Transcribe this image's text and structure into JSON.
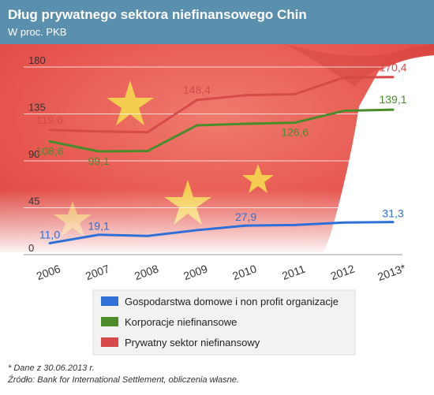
{
  "header": {
    "title": "Dług prywatnego sektora niefinansowego Chin",
    "subtitle": "W proc. PKB"
  },
  "colors": {
    "header_bg": "#5b8fae",
    "flag_red": "#e8504a",
    "flag_star": "#f6df4e",
    "blue_series": "#2f6fd8",
    "green_series": "#4a8c2a",
    "red_series": "#d64a4a",
    "legend_bg": "#f2f2f2"
  },
  "chart_data": {
    "type": "line",
    "x": [
      "2006",
      "2007",
      "2008",
      "2009",
      "2010",
      "2011",
      "2012",
      "2013*"
    ],
    "ylim": [
      0,
      180
    ],
    "yticks": [
      0,
      45,
      90,
      135,
      180
    ],
    "grid": true,
    "series": [
      {
        "name": "Gospodarstwa domowe i non profit organizacje",
        "color": "#2f6fd8",
        "values": [
          11.0,
          19.1,
          18.0,
          23.5,
          27.9,
          28.5,
          30.8,
          31.3
        ],
        "labels": [
          {
            "index": 0,
            "text": "11,0"
          },
          {
            "index": 1,
            "text": "19,1"
          },
          {
            "index": 4,
            "text": "27,9"
          },
          {
            "index": 7,
            "text": "31,3"
          }
        ]
      },
      {
        "name": "Korporacje niefinansowe",
        "color": "#4a8c2a",
        "values": [
          108.6,
          99.1,
          99.5,
          124.0,
          125.5,
          126.6,
          138.0,
          139.1
        ],
        "labels": [
          {
            "index": 0,
            "text": "108,6"
          },
          {
            "index": 1,
            "text": "99,1"
          },
          {
            "index": 5,
            "text": "126,6"
          },
          {
            "index": 7,
            "text": "139,1"
          }
        ]
      },
      {
        "name": "Prywatny sektor niefinansowy",
        "color": "#d64a4a",
        "values": [
          119.6,
          118.2,
          117.5,
          148.4,
          153.0,
          154.0,
          170.0,
          170.4
        ],
        "labels": [
          {
            "index": 0,
            "text": "119,6"
          },
          {
            "index": 3,
            "text": "148,4"
          },
          {
            "index": 7,
            "text": "170,4"
          }
        ]
      }
    ]
  },
  "legend": {
    "items": [
      "Gospodarstwa domowe i non profit organizacje",
      "Korporacje niefinansowe",
      "Prywatny sektor niefinansowy"
    ]
  },
  "footnotes": {
    "note": "* Dane z 30.06.2013 r.",
    "source": "Źródło: Bank for International Settlement, obliczenia własne."
  }
}
